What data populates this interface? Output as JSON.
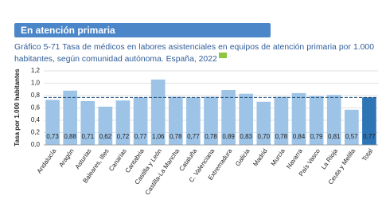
{
  "section_title": "En atención primaria",
  "chart_data": {
    "type": "bar",
    "title": "Gráfico 5-71 Tasa de médicos en labores asistenciales en equipos de atención primaria por 1.000 habitantes, según comunidad autónoma. España, 2022",
    "y_label": "Tasa por 1.000 habitantes",
    "categories": [
      "Andalucía",
      "Aragón",
      "Asturias",
      "Baleares, Illes",
      "Canarias",
      "Cantabria",
      "Castilla y León",
      "Castilla-La Mancha",
      "Cataluña",
      "C. Valenciana",
      "Extremadura",
      "Galicia",
      "Madrid",
      "Murcia",
      "Navarra",
      "País Vasco",
      "La Rioja",
      "Ceuta y Melilla",
      "Total"
    ],
    "values": [
      0.73,
      0.88,
      0.71,
      0.62,
      0.72,
      0.77,
      1.06,
      0.78,
      0.77,
      0.78,
      0.89,
      0.83,
      0.7,
      0.78,
      0.84,
      0.79,
      0.81,
      0.57,
      0.77
    ],
    "value_labels": [
      "0,73",
      "0,88",
      "0,71",
      "0,62",
      "0,72",
      "0,77",
      "1,06",
      "0,78",
      "0,77",
      "0,78",
      "0,89",
      "0,83",
      "0,70",
      "0,78",
      "0,84",
      "0,79",
      "0,81",
      "0,57",
      "0,77"
    ],
    "colors": [
      "#9dc3e6",
      "#9dc3e6",
      "#9dc3e6",
      "#9dc3e6",
      "#9dc3e6",
      "#9dc3e6",
      "#9dc3e6",
      "#9dc3e6",
      "#9dc3e6",
      "#9dc3e6",
      "#9dc3e6",
      "#9dc3e6",
      "#9dc3e6",
      "#9dc3e6",
      "#9dc3e6",
      "#9dc3e6",
      "#9dc3e6",
      "#9dc3e6",
      "#2e75b6"
    ],
    "ylim": [
      0,
      1.2
    ],
    "yticks": [
      {
        "value": 0,
        "label": "0,0"
      },
      {
        "value": 0.2,
        "label": "0,2"
      },
      {
        "value": 0.4,
        "label": "0,4"
      },
      {
        "value": 0.6,
        "label": "0,6"
      },
      {
        "value": 0.8,
        "label": "0,8"
      },
      {
        "value": 1,
        "label": "1,0"
      },
      {
        "value": 1.2,
        "label": "1,2"
      }
    ],
    "grid": true
  }
}
